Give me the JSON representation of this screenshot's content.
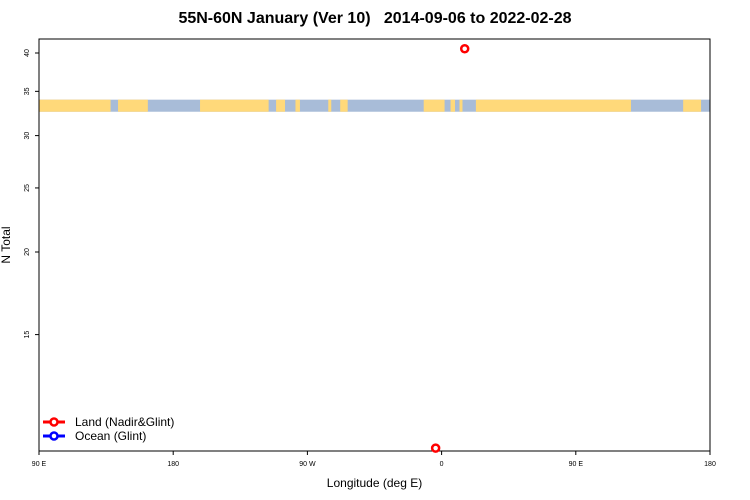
{
  "chart_data": {
    "type": "scatter",
    "title": "55N-60N January (Ver 10)   2014-09-06 to 2022-02-28",
    "xlabel": "Longitude (deg E)",
    "ylabel": "N Total",
    "x_ticks": [
      {
        "value": 90,
        "label": "90 E"
      },
      {
        "value": 180,
        "label": "180"
      },
      {
        "value": 270,
        "label": "90 W"
      },
      {
        "value": 360,
        "label": "0"
      },
      {
        "value": 450,
        "label": "90 E"
      },
      {
        "value": 540,
        "label": "180"
      }
    ],
    "xlim": [
      90,
      540
    ],
    "ylim": [
      10,
      42
    ],
    "y_ticks": [
      15,
      20,
      25,
      30,
      35,
      40
    ],
    "y_scale": "log",
    "grid": false,
    "legend_position": "bottom-left",
    "series": [
      {
        "name": "Land (Nadir&Glint)",
        "color": "#ff0000",
        "points": [
          {
            "x": 375.5,
            "y": 40.6
          },
          {
            "x": 356.0,
            "y": 10.1
          }
        ]
      },
      {
        "name": "Ocean (Glint)",
        "color": "#0000ff",
        "points": []
      }
    ],
    "surface_band": {
      "land_color": "#ffd97a",
      "ocean_color": "#a8bcd8",
      "land_lon_ranges": [
        [
          90.0,
          138.0
        ],
        [
          143.0,
          163.0
        ],
        [
          198.0,
          244.0
        ],
        [
          249.0,
          255.0
        ],
        [
          262.0,
          265.0
        ],
        [
          284.0,
          286.0
        ],
        [
          292.0,
          297.0
        ],
        [
          348.0,
          362.0
        ],
        [
          366.0,
          369.0
        ],
        [
          372.0,
          374.0
        ],
        [
          383.0,
          487.0
        ],
        [
          522.0,
          534.0
        ]
      ]
    }
  }
}
